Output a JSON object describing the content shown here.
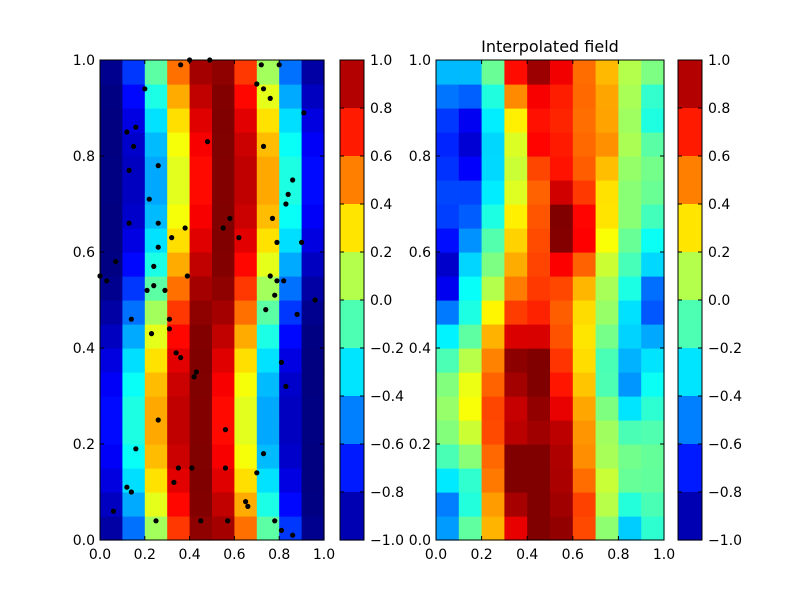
{
  "chart_data": [
    {
      "type": "heatmap",
      "title": "",
      "xlabel": "",
      "ylabel": "",
      "xlim": [
        0.0,
        1.0
      ],
      "ylim": [
        0.0,
        1.0
      ],
      "x_ticks": [
        "0.0",
        "0.2",
        "0.4",
        "0.6",
        "0.8",
        "1.0"
      ],
      "y_ticks": [
        "0.0",
        "0.2",
        "0.4",
        "0.6",
        "0.8",
        "1.0"
      ],
      "grid": false,
      "colormap": "jet",
      "grid_size": [
        10,
        20
      ],
      "value_range": [
        -1.0,
        1.0
      ],
      "field": "cos(2*pi*(x - 0.5 + 0.07*sin(2*pi*y)))",
      "colorbar_ticks": [
        "1.0",
        "0.8",
        "0.6",
        "0.4",
        "0.2",
        "0.0",
        "−0.2",
        "−0.4",
        "−0.6",
        "−0.8",
        "−1.0"
      ],
      "sample_points": [
        [
          0.06,
          0.06
        ],
        [
          0.12,
          0.11
        ],
        [
          0.14,
          0.1
        ],
        [
          0.16,
          0.19
        ],
        [
          0.25,
          0.04
        ],
        [
          0.33,
          0.12
        ],
        [
          0.35,
          0.15
        ],
        [
          0.41,
          0.15
        ],
        [
          0.45,
          0.04
        ],
        [
          0.57,
          0.04
        ],
        [
          0.56,
          0.15
        ],
        [
          0.65,
          0.08
        ],
        [
          0.66,
          0.07
        ],
        [
          0.7,
          0.14
        ],
        [
          0.73,
          0.18
        ],
        [
          0.78,
          0.04
        ],
        [
          0.81,
          0.02
        ],
        [
          0.86,
          0.01
        ],
        [
          0.56,
          0.23
        ],
        [
          0.26,
          0.25
        ],
        [
          0.83,
          0.32
        ],
        [
          0.43,
          0.35
        ],
        [
          0.42,
          0.34
        ],
        [
          0.34,
          0.39
        ],
        [
          0.36,
          0.38
        ],
        [
          0.31,
          0.44
        ],
        [
          0.31,
          0.46
        ],
        [
          0.23,
          0.43
        ],
        [
          0.81,
          0.37
        ],
        [
          0.82,
          0.54
        ],
        [
          0.79,
          0.54
        ],
        [
          0.76,
          0.55
        ],
        [
          0.78,
          0.51
        ],
        [
          0.74,
          0.48
        ],
        [
          0.88,
          0.47
        ],
        [
          0.96,
          0.5
        ],
        [
          0.21,
          0.52
        ],
        [
          0.24,
          0.53
        ],
        [
          0.29,
          0.52
        ],
        [
          0.14,
          0.46
        ],
        [
          0.0,
          0.55
        ],
        [
          0.03,
          0.54
        ],
        [
          0.07,
          0.58
        ],
        [
          0.24,
          0.57
        ],
        [
          0.39,
          0.55
        ],
        [
          0.26,
          0.61
        ],
        [
          0.32,
          0.63
        ],
        [
          0.38,
          0.65
        ],
        [
          0.55,
          0.65
        ],
        [
          0.58,
          0.67
        ],
        [
          0.62,
          0.63
        ],
        [
          0.77,
          0.67
        ],
        [
          0.79,
          0.62
        ],
        [
          0.9,
          0.62
        ],
        [
          0.83,
          0.7
        ],
        [
          0.84,
          0.72
        ],
        [
          0.86,
          0.75
        ],
        [
          0.22,
          0.71
        ],
        [
          0.26,
          0.66
        ],
        [
          0.13,
          0.66
        ],
        [
          0.26,
          0.78
        ],
        [
          0.13,
          0.77
        ],
        [
          0.15,
          0.82
        ],
        [
          0.12,
          0.85
        ],
        [
          0.16,
          0.86
        ],
        [
          0.48,
          0.83
        ],
        [
          0.73,
          0.82
        ],
        [
          0.2,
          0.94
        ],
        [
          0.36,
          0.99
        ],
        [
          0.49,
          1.0
        ],
        [
          0.7,
          0.95
        ],
        [
          0.73,
          0.94
        ],
        [
          0.76,
          0.92
        ],
        [
          0.91,
          0.89
        ],
        [
          0.8,
          0.99
        ],
        [
          0.72,
          0.99
        ],
        [
          0.4,
          1.0
        ]
      ]
    },
    {
      "type": "heatmap",
      "title": "Interpolated field",
      "xlabel": "",
      "ylabel": "",
      "xlim": [
        0.0,
        1.0
      ],
      "ylim": [
        0.0,
        1.0
      ],
      "x_ticks": [
        "0.0",
        "0.2",
        "0.4",
        "0.6",
        "0.8",
        "1.0"
      ],
      "y_ticks": [
        "0.0",
        "0.2",
        "0.4",
        "0.6",
        "0.8",
        "1.0"
      ],
      "grid": false,
      "colormap": "jet",
      "grid_size": [
        10,
        20
      ],
      "value_range": [
        -1.0,
        1.0
      ],
      "field": "interpolated from sample points",
      "colorbar_ticks": [
        "1.0",
        "0.8",
        "0.6",
        "0.4",
        "0.2",
        "0.0",
        "−0.2",
        "−0.4",
        "−0.6",
        "−0.8",
        "−1.0"
      ]
    }
  ]
}
